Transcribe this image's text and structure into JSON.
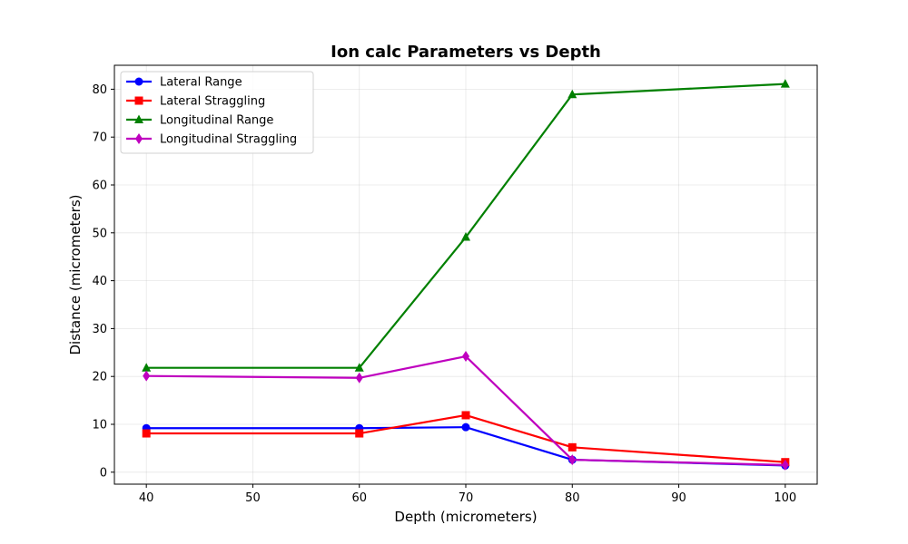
{
  "chart_data": {
    "type": "line",
    "title": "Ion calc Parameters vs Depth",
    "xlabel": "Depth (micrometers)",
    "ylabel": "Distance (micrometers)",
    "x": [
      40,
      60,
      70,
      80,
      100
    ],
    "xlim": [
      37,
      103
    ],
    "ylim": [
      -2.5,
      85
    ],
    "xticks": [
      40,
      50,
      60,
      70,
      80,
      90,
      100
    ],
    "yticks": [
      0,
      10,
      20,
      30,
      40,
      50,
      60,
      70,
      80
    ],
    "grid": true,
    "legend_position": "upper-left",
    "series": [
      {
        "name": "Lateral Range",
        "color": "#0000ff",
        "marker": "circle",
        "values": [
          9.2,
          9.2,
          9.4,
          2.6,
          1.4
        ]
      },
      {
        "name": "Lateral Straggling",
        "color": "#ff0000",
        "marker": "square",
        "values": [
          8.1,
          8.1,
          11.9,
          5.2,
          2.1
        ]
      },
      {
        "name": "Longitudinal Range",
        "color": "#008000",
        "marker": "triangle",
        "values": [
          21.8,
          21.8,
          49.1,
          78.9,
          81.1
        ]
      },
      {
        "name": "Longitudinal Straggling",
        "color": "#bf00bf",
        "marker": "diamond",
        "values": [
          20.1,
          19.7,
          24.2,
          2.6,
          1.5
        ]
      }
    ]
  }
}
